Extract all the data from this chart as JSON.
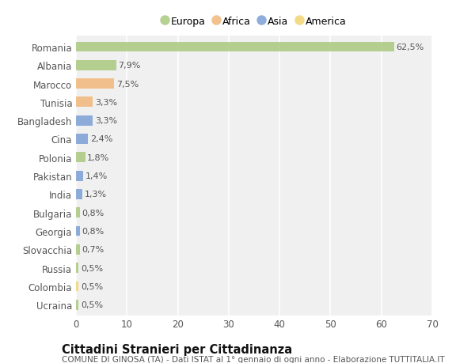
{
  "countries": [
    "Romania",
    "Albania",
    "Marocco",
    "Tunisia",
    "Bangladesh",
    "Cina",
    "Polonia",
    "Pakistan",
    "India",
    "Bulgaria",
    "Georgia",
    "Slovacchia",
    "Russia",
    "Colombia",
    "Ucraina"
  ],
  "values": [
    62.5,
    7.9,
    7.5,
    3.3,
    3.3,
    2.4,
    1.8,
    1.4,
    1.3,
    0.8,
    0.8,
    0.7,
    0.5,
    0.5,
    0.5
  ],
  "labels": [
    "62,5%",
    "7,9%",
    "7,5%",
    "3,3%",
    "3,3%",
    "2,4%",
    "1,8%",
    "1,4%",
    "1,3%",
    "0,8%",
    "0,8%",
    "0,7%",
    "0,5%",
    "0,5%",
    "0,5%"
  ],
  "continents": [
    "Europa",
    "Europa",
    "Africa",
    "Africa",
    "Asia",
    "Asia",
    "Europa",
    "Asia",
    "Asia",
    "Europa",
    "Asia",
    "Europa",
    "Europa",
    "America",
    "Europa"
  ],
  "continent_colors": {
    "Europa": "#aac97e",
    "Africa": "#f2b77a",
    "Asia": "#7b9fd4",
    "America": "#f2d472"
  },
  "legend_order": [
    "Europa",
    "Africa",
    "Asia",
    "America"
  ],
  "xlim": [
    0,
    70
  ],
  "xticks": [
    0,
    10,
    20,
    30,
    40,
    50,
    60,
    70
  ],
  "background_color": "#ffffff",
  "bar_height": 0.55,
  "title_main": "Cittadini Stranieri per Cittadinanza",
  "title_sub": "COMUNE DI GINOSA (TA) - Dati ISTAT al 1° gennaio di ogni anno - Elaborazione TUTTITALIA.IT",
  "label_fontsize": 8,
  "tick_fontsize": 8.5,
  "title_fontsize": 10.5,
  "subtitle_fontsize": 7.5,
  "legend_fontsize": 9
}
